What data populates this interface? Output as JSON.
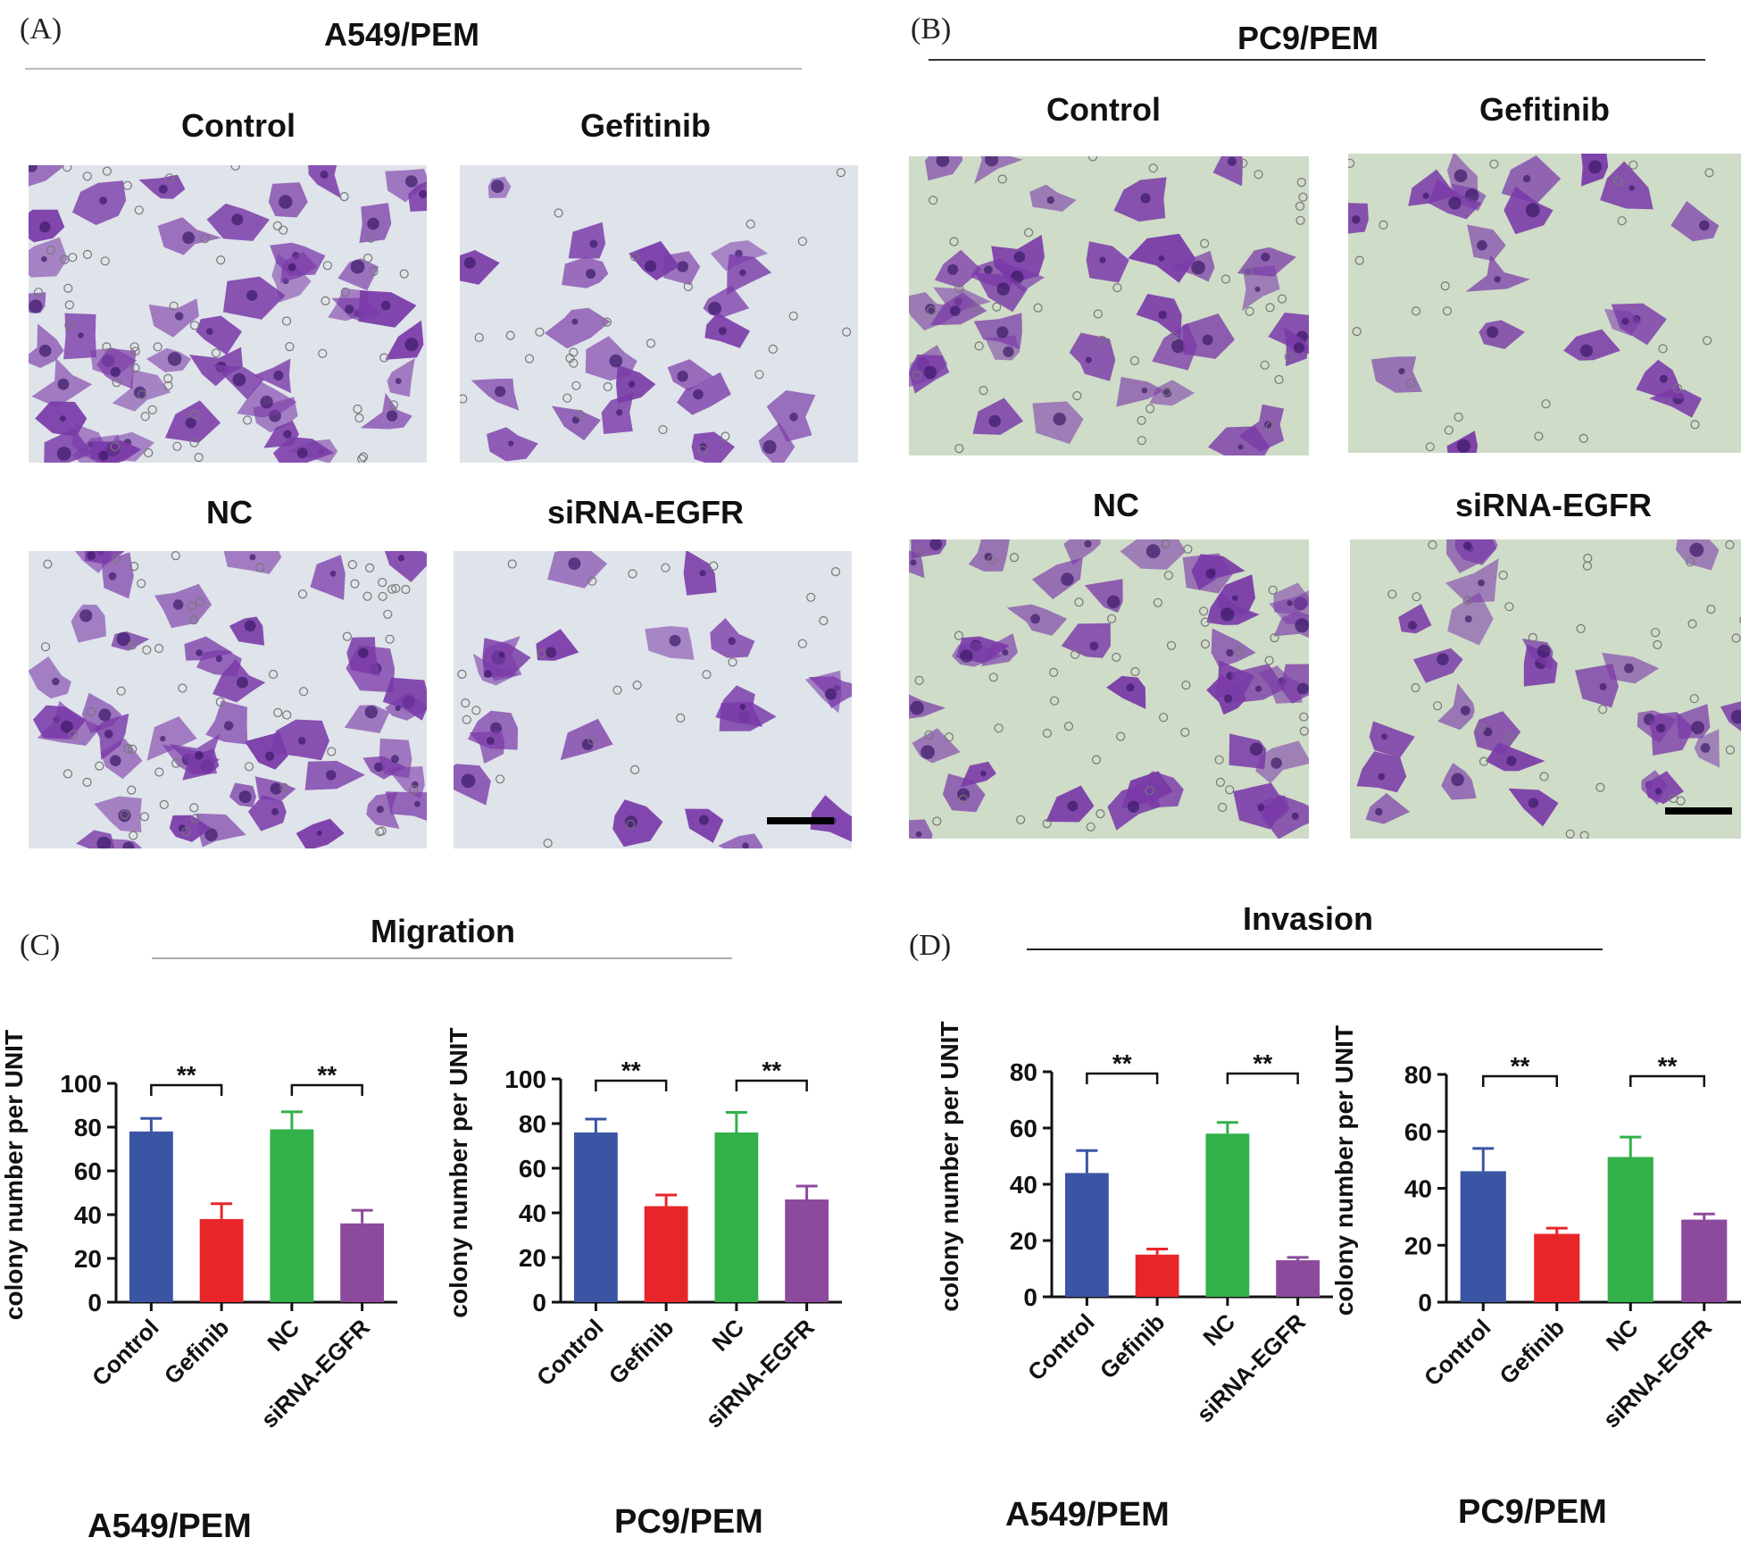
{
  "panels": {
    "A": {
      "letter": "(A)",
      "title": "A549/PEM",
      "labels": [
        "Control",
        "Gefitinib",
        "NC",
        "siRNA-EGFR"
      ]
    },
    "B": {
      "letter": "(B)",
      "title": "PC9/PEM",
      "labels": [
        "Control",
        "Gefitinib",
        "NC",
        "siRNA-EGFR"
      ]
    },
    "C": {
      "letter": "(C)",
      "title": "Migration"
    },
    "D": {
      "letter": "(D)",
      "title": "Invasion"
    }
  },
  "bottom_labels": [
    "A549/PEM",
    "PC9/PEM",
    "A549/PEM",
    "PC9/PEM"
  ],
  "colors": {
    "control": "#3a55a4",
    "gefinib": "#e8262a",
    "nc": "#33b04a",
    "sirna": "#8c4a9c",
    "cell": "#7a3aa8",
    "bg_a": "#dfe3ea",
    "bg_b": "#cfdcc8"
  },
  "chart_data": [
    {
      "type": "bar",
      "group": "Migration",
      "cell_line": "A549/PEM",
      "categories": [
        "Control",
        "Gefinib",
        "NC",
        "siRNA-EGFR"
      ],
      "values": [
        78,
        38,
        79,
        36
      ],
      "errors": [
        6,
        7,
        8,
        6
      ],
      "ylabel": "colony number per UNIT",
      "ylim": [
        0,
        100
      ],
      "yticks": [
        0,
        20,
        40,
        60,
        80,
        100
      ],
      "significance": [
        {
          "pair": [
            0,
            1
          ],
          "label": "**"
        },
        {
          "pair": [
            2,
            3
          ],
          "label": "**"
        }
      ]
    },
    {
      "type": "bar",
      "group": "Migration",
      "cell_line": "PC9/PEM",
      "categories": [
        "Control",
        "Gefinib",
        "NC",
        "siRNA-EGFR"
      ],
      "values": [
        76,
        43,
        76,
        46
      ],
      "errors": [
        6,
        5,
        9,
        6
      ],
      "ylabel": "colony number per UNIT",
      "ylim": [
        0,
        100
      ],
      "yticks": [
        0,
        20,
        40,
        60,
        80,
        100
      ],
      "significance": [
        {
          "pair": [
            0,
            1
          ],
          "label": "**"
        },
        {
          "pair": [
            2,
            3
          ],
          "label": "**"
        }
      ]
    },
    {
      "type": "bar",
      "group": "Invasion",
      "cell_line": "A549/PEM",
      "categories": [
        "Control",
        "Gefinib",
        "NC",
        "siRNA-EGFR"
      ],
      "values": [
        44,
        15,
        58,
        13
      ],
      "errors": [
        8,
        2,
        4,
        1
      ],
      "ylabel": "colony number per UNIT",
      "ylim": [
        0,
        80
      ],
      "yticks": [
        0,
        20,
        40,
        60,
        80
      ],
      "significance": [
        {
          "pair": [
            0,
            1
          ],
          "label": "**"
        },
        {
          "pair": [
            2,
            3
          ],
          "label": "**"
        }
      ]
    },
    {
      "type": "bar",
      "group": "Invasion",
      "cell_line": "PC9/PEM",
      "categories": [
        "Control",
        "Gefinib",
        "NC",
        "siRNA-EGFR"
      ],
      "values": [
        46,
        24,
        51,
        29
      ],
      "errors": [
        8,
        2,
        7,
        2
      ],
      "ylabel": "colony number per UNIT",
      "ylim": [
        0,
        80
      ],
      "yticks": [
        0,
        20,
        40,
        60,
        80
      ],
      "significance": [
        {
          "pair": [
            0,
            1
          ],
          "label": "**"
        },
        {
          "pair": [
            2,
            3
          ],
          "label": "**"
        }
      ]
    }
  ]
}
